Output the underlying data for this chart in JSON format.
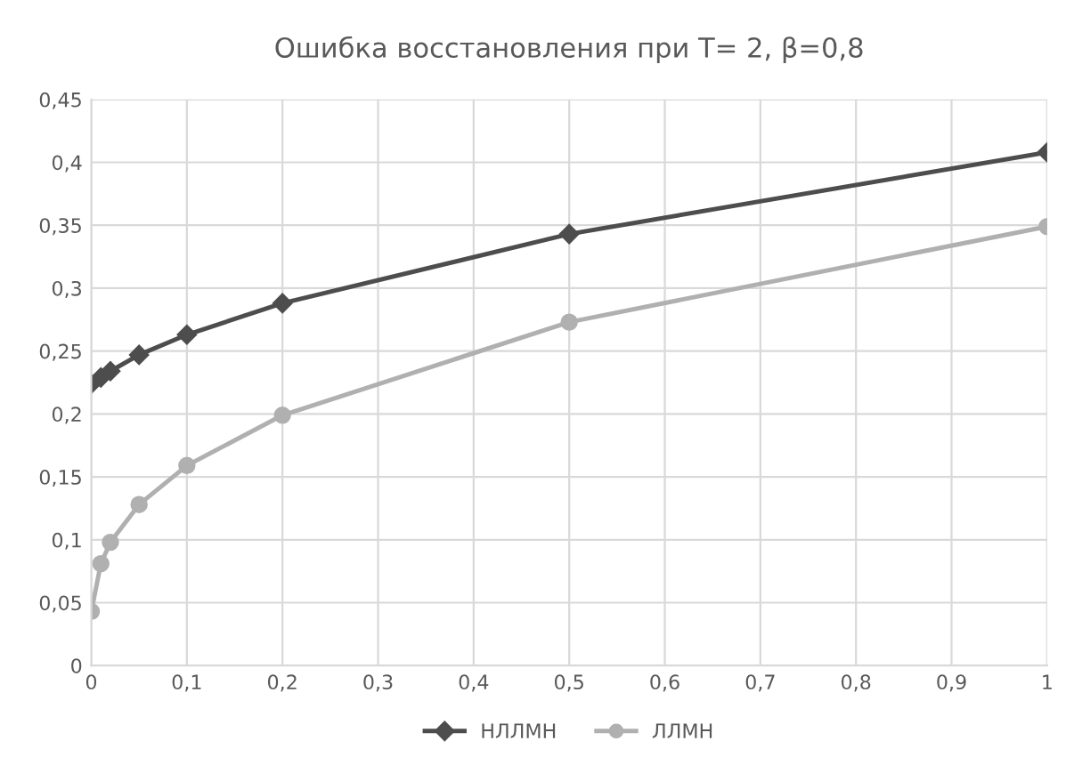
{
  "chart_data": {
    "type": "line",
    "title": "Ошибка восстановления при T= 2, β=0,8",
    "x": [
      0,
      0.01,
      0.02,
      0.05,
      0.1,
      0.2,
      0.5,
      1
    ],
    "series": [
      {
        "name": "НЛЛМН",
        "color": "#4d4d4d",
        "marker": "diamond",
        "values": [
          0.224,
          0.229,
          0.234,
          0.247,
          0.263,
          0.288,
          0.343,
          0.408
        ]
      },
      {
        "name": "ЛЛМН",
        "color": "#b0b0b0",
        "marker": "circle",
        "values": [
          0.043,
          0.081,
          0.098,
          0.128,
          0.159,
          0.199,
          0.273,
          0.349
        ]
      }
    ],
    "xlim": [
      0,
      1
    ],
    "xticks": [
      0,
      {
        "value": 0.1,
        "label": "0,1"
      },
      {
        "value": 0.2,
        "label": "0,2"
      },
      {
        "value": 0.3,
        "label": "0,3"
      },
      {
        "value": 0.4,
        "label": "0,4"
      },
      {
        "value": 0.5,
        "label": "0,5"
      },
      {
        "value": 0.6,
        "label": "0,6"
      },
      {
        "value": 0.7,
        "label": "0,7"
      },
      {
        "value": 0.8,
        "label": "0,8"
      },
      {
        "value": 0.9,
        "label": "0,9"
      },
      1
    ],
    "ylim": [
      0,
      0.45
    ],
    "yticks": [
      0,
      {
        "value": 0.05,
        "label": "0,05"
      },
      {
        "value": 0.1,
        "label": "0,1"
      },
      {
        "value": 0.15,
        "label": "0,15"
      },
      {
        "value": 0.2,
        "label": "0,2"
      },
      {
        "value": 0.25,
        "label": "0,25"
      },
      {
        "value": 0.3,
        "label": "0,3"
      },
      {
        "value": 0.35,
        "label": "0,35"
      },
      {
        "value": 0.4,
        "label": "0,4"
      },
      {
        "value": 0.45,
        "label": "0,45"
      }
    ],
    "grid": true,
    "legend": "bottom",
    "line_style": "solid"
  }
}
